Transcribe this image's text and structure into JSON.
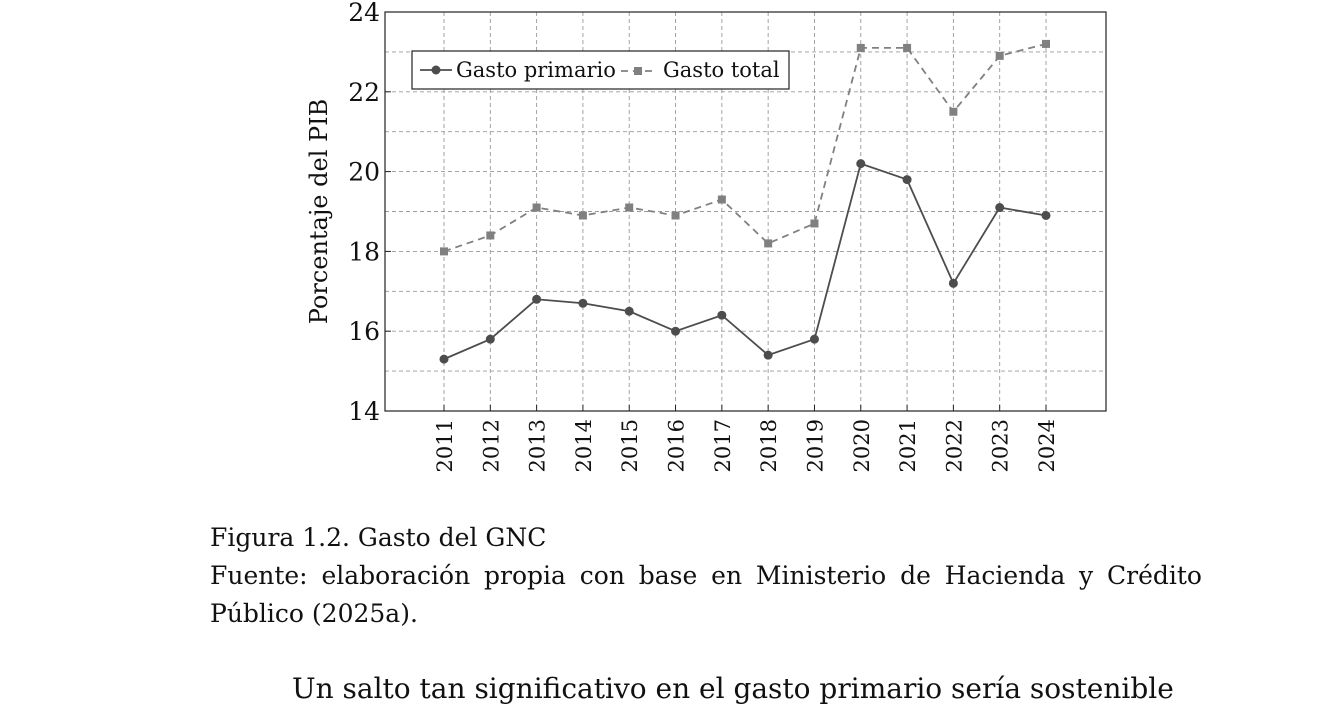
{
  "chart_data": {
    "type": "line",
    "categories": [
      "2011",
      "2012",
      "2013",
      "2014",
      "2015",
      "2016",
      "2017",
      "2018",
      "2019",
      "2020",
      "2021",
      "2022",
      "2023",
      "2024"
    ],
    "series": [
      {
        "name": "Gasto primario",
        "values": [
          15.3,
          15.8,
          16.8,
          16.7,
          16.5,
          16.0,
          16.4,
          15.4,
          15.8,
          20.2,
          19.8,
          17.2,
          19.1,
          18.9
        ],
        "color": "#4d4d4d",
        "marker": "circle",
        "dash": "solid"
      },
      {
        "name": "Gasto total",
        "values": [
          18.0,
          18.4,
          19.1,
          18.9,
          19.1,
          18.9,
          19.3,
          18.2,
          18.7,
          23.1,
          23.1,
          21.5,
          22.9,
          23.2
        ],
        "color": "#808080",
        "marker": "square",
        "dash": "dashed"
      }
    ],
    "ylabel": "Porcentaje del PIB",
    "xlabel": "",
    "ylim": [
      14,
      24
    ],
    "yticks": [
      "14",
      "16",
      "18",
      "20",
      "22",
      "24"
    ],
    "grid": true,
    "legend_position": "top-left"
  },
  "caption": {
    "title": "Figura 1.2. Gasto del GNC",
    "source": "Fuente: elaboración propia con base en Ministerio de Hacienda y Crédito Público (2025a)."
  },
  "body_text": "Un salto tan significativo en el gasto primario sería sostenible"
}
